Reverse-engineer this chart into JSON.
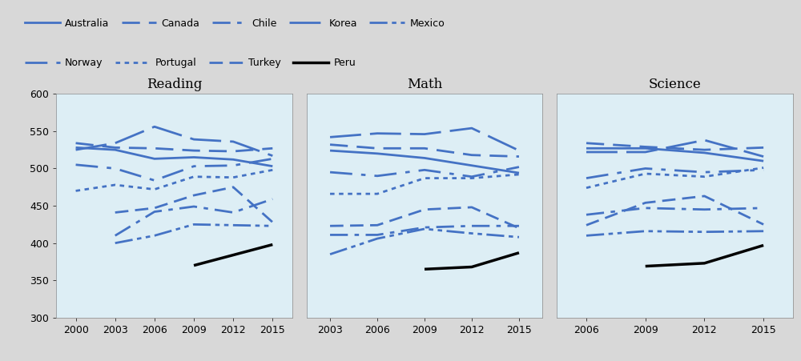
{
  "reading_data": {
    "years": [
      2000,
      2003,
      2006,
      2009,
      2012,
      2015
    ],
    "Australia": [
      528,
      525,
      513,
      515,
      512,
      503
    ],
    "Canada": [
      534,
      528,
      527,
      524,
      523,
      527
    ],
    "Korea": [
      525,
      534,
      556,
      539,
      536,
      517
    ],
    "Norway": [
      505,
      500,
      484,
      503,
      504,
      513
    ],
    "Portugal": [
      470,
      478,
      472,
      489,
      488,
      498
    ],
    "Chile": [
      null,
      410,
      442,
      449,
      441,
      459
    ],
    "Turkey": [
      null,
      441,
      447,
      464,
      475,
      428
    ],
    "Mexico": [
      null,
      400,
      410,
      425,
      424,
      423
    ],
    "Peru": [
      null,
      null,
      null,
      370,
      384,
      398
    ]
  },
  "math_data": {
    "years": [
      2003,
      2006,
      2009,
      2012,
      2015
    ],
    "Australia": [
      524,
      520,
      514,
      504,
      494
    ],
    "Canada": [
      532,
      527,
      527,
      518,
      516
    ],
    "Korea": [
      542,
      547,
      546,
      554,
      524
    ],
    "Norway": [
      495,
      490,
      498,
      489,
      502
    ],
    "Portugal": [
      466,
      466,
      487,
      487,
      492
    ],
    "Chile": [
      411,
      411,
      421,
      423,
      423
    ],
    "Turkey": [
      423,
      424,
      445,
      448,
      420
    ],
    "Mexico": [
      385,
      406,
      419,
      413,
      408
    ],
    "Peru": [
      null,
      null,
      365,
      368,
      387
    ]
  },
  "science_data": {
    "years": [
      2006,
      2009,
      2012,
      2015
    ],
    "Australia": [
      527,
      527,
      521,
      510
    ],
    "Canada": [
      534,
      529,
      525,
      528
    ],
    "Korea": [
      522,
      522,
      538,
      516
    ],
    "Norway": [
      487,
      500,
      495,
      498
    ],
    "Portugal": [
      474,
      493,
      489,
      501
    ],
    "Chile": [
      438,
      447,
      445,
      447
    ],
    "Turkey": [
      424,
      454,
      463,
      425
    ],
    "Mexico": [
      410,
      416,
      415,
      416
    ],
    "Peru": [
      null,
      369,
      373,
      397
    ]
  },
  "panel_titles": [
    "Reading",
    "Math",
    "Science"
  ],
  "background_color": "#ddeef5",
  "fig_background": "#d8d8d8",
  "ylim": [
    300,
    600
  ],
  "yticks": [
    300,
    350,
    400,
    450,
    500,
    550,
    600
  ],
  "legend_row1": [
    "Australia",
    "Canada",
    "Chile",
    "Korea",
    "Mexico"
  ],
  "legend_row2": [
    "Norway",
    "Portugal",
    "Turkey",
    "Peru"
  ],
  "legend_entries": [
    {
      "name": "Australia",
      "color": "#4472C4",
      "dashes": null,
      "lw": 2.0
    },
    {
      "name": "Canada",
      "color": "#4472C4",
      "dashes": [
        8,
        4,
        8,
        4
      ],
      "lw": 2.0
    },
    {
      "name": "Chile",
      "color": "#4472C4",
      "dashes": [
        8,
        3,
        2,
        3
      ],
      "lw": 2.0
    },
    {
      "name": "Korea",
      "color": "#4472C4",
      "dashes": [
        14,
        4,
        14,
        4
      ],
      "lw": 2.0
    },
    {
      "name": "Mexico",
      "color": "#4472C4",
      "dashes": [
        8,
        2,
        2,
        2,
        2,
        2
      ],
      "lw": 2.0
    },
    {
      "name": "Norway",
      "color": "#4472C4",
      "dashes": [
        10,
        4,
        2,
        4
      ],
      "lw": 2.0
    },
    {
      "name": "Portugal",
      "color": "#4472C4",
      "dashes": [
        2,
        2,
        2,
        2,
        2,
        2
      ],
      "lw": 2.0
    },
    {
      "name": "Turkey",
      "color": "#4472C4",
      "dashes": [
        6,
        3
      ],
      "lw": 2.0
    },
    {
      "name": "Peru",
      "color": "#000000",
      "dashes": null,
      "lw": 2.5
    }
  ],
  "countries_order": [
    "Australia",
    "Canada",
    "Korea",
    "Norway",
    "Portugal",
    "Chile",
    "Turkey",
    "Mexico",
    "Peru"
  ]
}
